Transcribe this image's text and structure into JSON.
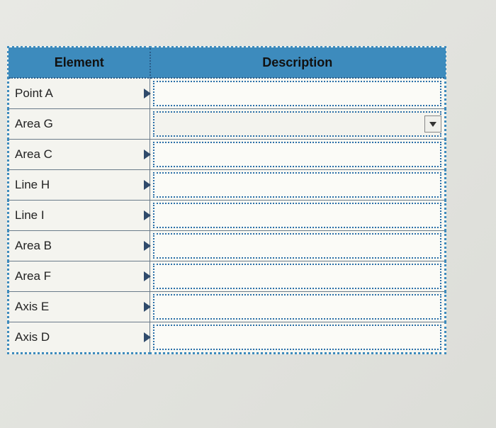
{
  "table": {
    "header_bg": "#3d8bbd",
    "border_color": "#2a6fa8",
    "columns": {
      "element": "Element",
      "description": "Description"
    },
    "rows": [
      {
        "element": "Point A",
        "description": "",
        "hasTriangle": true,
        "hasDropdown": false
      },
      {
        "element": "Area G",
        "description": "",
        "hasTriangle": false,
        "hasDropdown": true
      },
      {
        "element": "Area C",
        "description": "",
        "hasTriangle": true,
        "hasDropdown": false
      },
      {
        "element": "Line H",
        "description": "",
        "hasTriangle": true,
        "hasDropdown": false
      },
      {
        "element": "Line I",
        "description": "",
        "hasTriangle": true,
        "hasDropdown": false
      },
      {
        "element": "Area B",
        "description": "",
        "hasTriangle": true,
        "hasDropdown": false
      },
      {
        "element": "Area F",
        "description": "",
        "hasTriangle": true,
        "hasDropdown": false
      },
      {
        "element": "Axis E",
        "description": "",
        "hasTriangle": true,
        "hasDropdown": false
      },
      {
        "element": "Axis D",
        "description": "",
        "hasTriangle": true,
        "hasDropdown": false
      }
    ]
  }
}
